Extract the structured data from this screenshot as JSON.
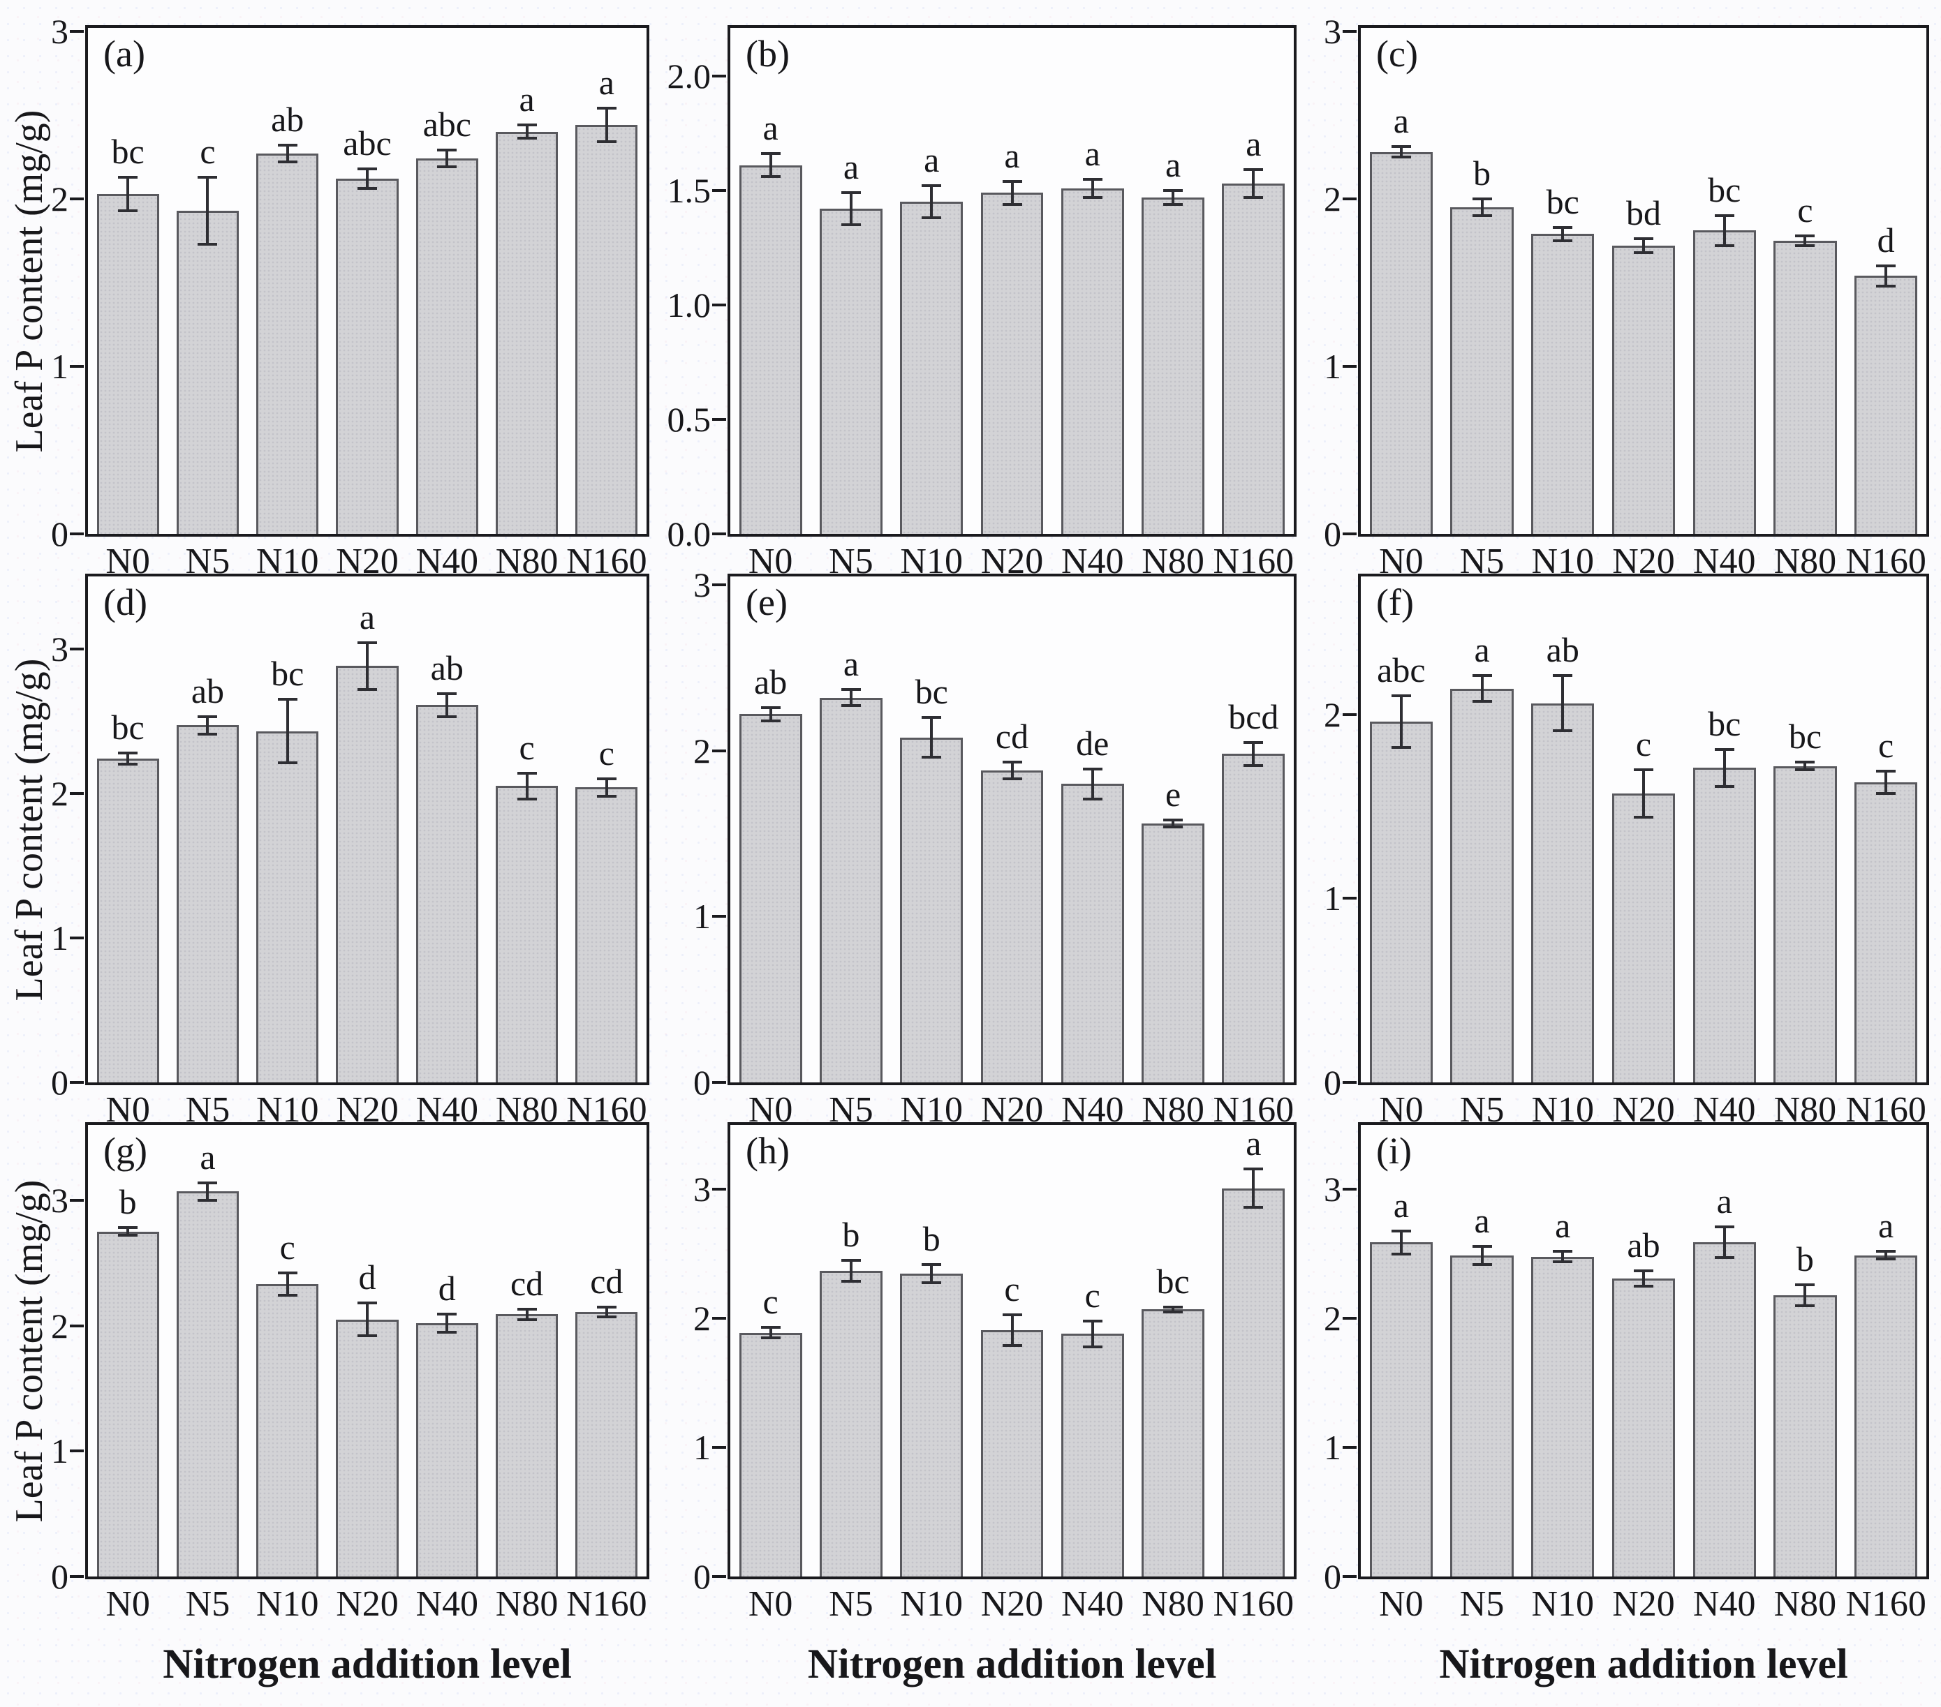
{
  "figure": {
    "ylabel": "Leaf P content (mg/g)",
    "xlabel": "Nitrogen addition level",
    "categories": [
      "N0",
      "N5",
      "N10",
      "N20",
      "N40",
      "N80",
      "N160"
    ],
    "colors": {
      "bar_fill": "#d3d3d6",
      "bar_dot": "#c3c3c9",
      "bar_edge": "#59595e",
      "axis": "#1a1a1e",
      "error_bar": "#2e2e33",
      "text": "#17171a",
      "background": "#fbfbfd"
    }
  },
  "chart_data": [
    {
      "type": "bar",
      "panel": "a",
      "label": "(a)",
      "categories": [
        "N0",
        "N5",
        "N10",
        "N20",
        "N40",
        "N80",
        "N160"
      ],
      "values": [
        2.03,
        1.93,
        2.27,
        2.12,
        2.24,
        2.4,
        2.44
      ],
      "errors": [
        0.1,
        0.2,
        0.05,
        0.06,
        0.05,
        0.04,
        0.1
      ],
      "sig_letters": [
        "bc",
        "c",
        "ab",
        "abc",
        "abc",
        "a",
        "a"
      ],
      "yticks": [
        0,
        1,
        2,
        3
      ],
      "ytick_labels": [
        "0",
        "1",
        "2",
        "3"
      ],
      "ylim": [
        0,
        3.02
      ],
      "ylabel_shown": true,
      "xlabel_shown": false
    },
    {
      "type": "bar",
      "panel": "b",
      "label": "(b)",
      "categories": [
        "N0",
        "N5",
        "N10",
        "N20",
        "N40",
        "N80",
        "N160"
      ],
      "values": [
        1.61,
        1.42,
        1.45,
        1.49,
        1.51,
        1.47,
        1.53
      ],
      "errors": [
        0.05,
        0.07,
        0.07,
        0.05,
        0.04,
        0.03,
        0.06
      ],
      "sig_letters": [
        "a",
        "a",
        "a",
        "a",
        "a",
        "a",
        "a"
      ],
      "yticks": [
        0,
        0.5,
        1,
        1.5,
        2
      ],
      "ytick_labels": [
        "0.0",
        "0.5",
        "1.0",
        "1.5",
        "2.0"
      ],
      "ylim": [
        0,
        2.21
      ],
      "ylabel_shown": false,
      "xlabel_shown": false
    },
    {
      "type": "bar",
      "panel": "c",
      "label": "(c)",
      "categories": [
        "N0",
        "N5",
        "N10",
        "N20",
        "N40",
        "N80",
        "N160"
      ],
      "values": [
        2.28,
        1.95,
        1.79,
        1.72,
        1.81,
        1.75,
        1.54
      ],
      "errors": [
        0.03,
        0.05,
        0.04,
        0.04,
        0.09,
        0.03,
        0.06
      ],
      "sig_letters": [
        "a",
        "b",
        "bc",
        "bd",
        "bc",
        "c",
        "d"
      ],
      "yticks": [
        0,
        1,
        2,
        3
      ],
      "ytick_labels": [
        "0",
        "1",
        "2",
        "3"
      ],
      "ylim": [
        0,
        3.02
      ],
      "ylabel_shown": false,
      "xlabel_shown": false
    },
    {
      "type": "bar",
      "panel": "d",
      "label": "(d)",
      "categories": [
        "N0",
        "N5",
        "N10",
        "N20",
        "N40",
        "N80",
        "N160"
      ],
      "values": [
        2.24,
        2.47,
        2.43,
        2.88,
        2.61,
        2.05,
        2.04
      ],
      "errors": [
        0.04,
        0.06,
        0.22,
        0.16,
        0.08,
        0.09,
        0.06
      ],
      "sig_letters": [
        "bc",
        "ab",
        "bc",
        "a",
        "ab",
        "c",
        "c"
      ],
      "yticks": [
        0,
        1,
        2,
        3
      ],
      "ytick_labels": [
        "0",
        "1",
        "2",
        "3"
      ],
      "ylim": [
        0,
        3.5
      ],
      "ylabel_shown": true,
      "xlabel_shown": false
    },
    {
      "type": "bar",
      "panel": "e",
      "label": "(e)",
      "categories": [
        "N0",
        "N5",
        "N10",
        "N20",
        "N40",
        "N80",
        "N160"
      ],
      "values": [
        2.22,
        2.32,
        2.08,
        1.88,
        1.8,
        1.56,
        1.98
      ],
      "errors": [
        0.04,
        0.05,
        0.12,
        0.05,
        0.09,
        0.02,
        0.07
      ],
      "sig_letters": [
        "ab",
        "a",
        "bc",
        "cd",
        "de",
        "e",
        "bcd"
      ],
      "yticks": [
        0,
        1,
        2,
        3
      ],
      "ytick_labels": [
        "0",
        "1",
        "2",
        "3"
      ],
      "ylim": [
        0,
        3.05
      ],
      "ylabel_shown": false,
      "xlabel_shown": false
    },
    {
      "type": "bar",
      "panel": "f",
      "label": "(f)",
      "categories": [
        "N0",
        "N5",
        "N10",
        "N20",
        "N40",
        "N80",
        "N160"
      ],
      "values": [
        1.96,
        2.14,
        2.06,
        1.57,
        1.71,
        1.72,
        1.63
      ],
      "errors": [
        0.14,
        0.07,
        0.15,
        0.13,
        0.1,
        0.02,
        0.06
      ],
      "sig_letters": [
        "abc",
        "a",
        "ab",
        "c",
        "bc",
        "bc",
        "c"
      ],
      "yticks": [
        0,
        1,
        2
      ],
      "ytick_labels": [
        "0",
        "1",
        "2"
      ],
      "ylim": [
        0,
        2.75
      ],
      "ylabel_shown": false,
      "xlabel_shown": false
    },
    {
      "type": "bar",
      "panel": "g",
      "label": "(g)",
      "categories": [
        "N0",
        "N5",
        "N10",
        "N20",
        "N40",
        "N80",
        "N160"
      ],
      "values": [
        2.75,
        3.07,
        2.33,
        2.05,
        2.02,
        2.09,
        2.11
      ],
      "errors": [
        0.03,
        0.07,
        0.09,
        0.13,
        0.07,
        0.04,
        0.04
      ],
      "sig_letters": [
        "b",
        "a",
        "c",
        "d",
        "d",
        "cd",
        "cd"
      ],
      "yticks": [
        0,
        1,
        2,
        3
      ],
      "ytick_labels": [
        "0",
        "1",
        "2",
        "3"
      ],
      "ylim": [
        0,
        3.6
      ],
      "ylabel_shown": true,
      "xlabel_shown": true
    },
    {
      "type": "bar",
      "panel": "h",
      "label": "(h)",
      "categories": [
        "N0",
        "N5",
        "N10",
        "N20",
        "N40",
        "N80",
        "N160"
      ],
      "values": [
        1.89,
        2.37,
        2.35,
        1.91,
        1.88,
        2.07,
        3.01
      ],
      "errors": [
        0.04,
        0.08,
        0.07,
        0.12,
        0.1,
        0.02,
        0.15
      ],
      "sig_letters": [
        "c",
        "b",
        "b",
        "c",
        "c",
        "bc",
        "a"
      ],
      "yticks": [
        0,
        1,
        2,
        3
      ],
      "ytick_labels": [
        "0",
        "1",
        "2",
        "3"
      ],
      "ylim": [
        0,
        3.5
      ],
      "ylabel_shown": false,
      "xlabel_shown": true
    },
    {
      "type": "bar",
      "panel": "i",
      "label": "(i)",
      "categories": [
        "N0",
        "N5",
        "N10",
        "N20",
        "N40",
        "N80",
        "N160"
      ],
      "values": [
        2.59,
        2.49,
        2.48,
        2.31,
        2.59,
        2.18,
        2.49
      ],
      "errors": [
        0.09,
        0.07,
        0.04,
        0.06,
        0.12,
        0.08,
        0.03
      ],
      "sig_letters": [
        "a",
        "a",
        "a",
        "ab",
        "a",
        "b",
        "a"
      ],
      "yticks": [
        0,
        1,
        2,
        3
      ],
      "ytick_labels": [
        "0",
        "1",
        "2",
        "3"
      ],
      "ylim": [
        0,
        3.5
      ],
      "ylabel_shown": false,
      "xlabel_shown": true
    }
  ]
}
